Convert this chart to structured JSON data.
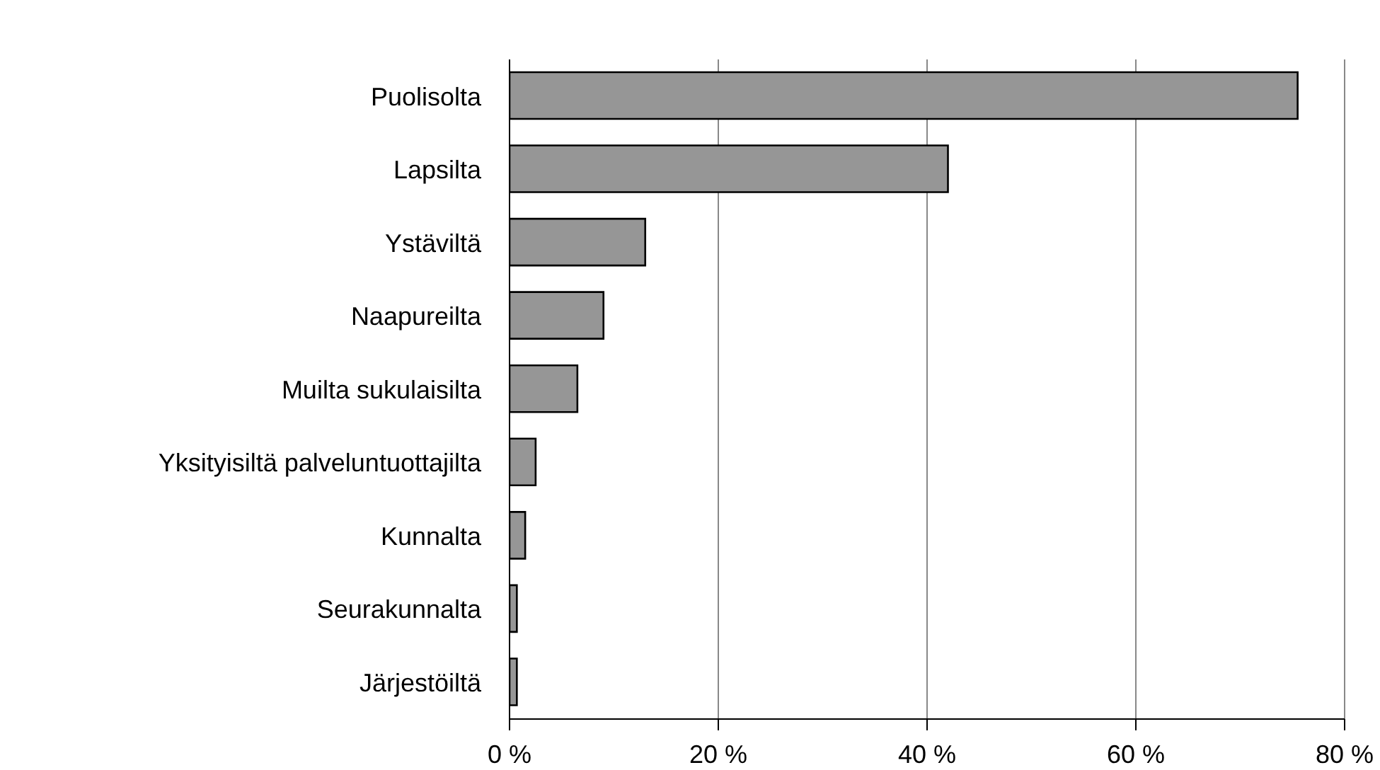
{
  "chart_data": {
    "type": "bar",
    "orientation": "horizontal",
    "categories": [
      "Puolisolta",
      "Lapsilta",
      "Ystäviltä",
      "Naapureilta",
      "Muilta sukulaisilta",
      "Yksityisiltä palveluntuottajilta",
      "Kunnalta",
      "Seurakunnalta",
      "Järjestöiltä"
    ],
    "values": [
      75.5,
      42,
      13,
      9,
      6.5,
      2.5,
      1.5,
      0.7,
      0.7
    ],
    "color": "#969696",
    "xlim": [
      0,
      80
    ],
    "xticks": [
      {
        "value": 0,
        "label": "0 %"
      },
      {
        "value": 20,
        "label": "20 %"
      },
      {
        "value": 40,
        "label": "40 %"
      },
      {
        "value": 60,
        "label": "60 %"
      },
      {
        "value": 80,
        "label": "80 %"
      }
    ],
    "grid": "x"
  }
}
